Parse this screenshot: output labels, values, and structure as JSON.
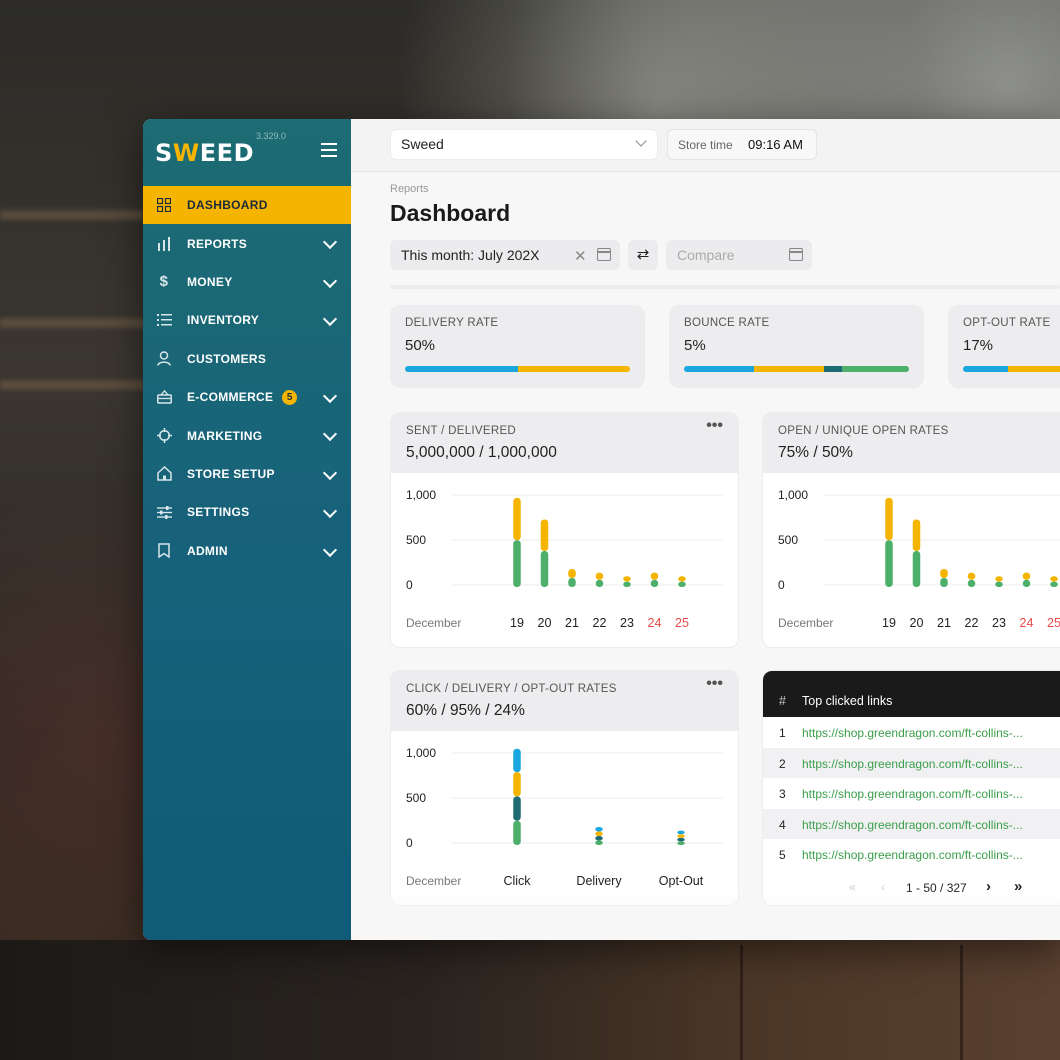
{
  "app": {
    "logo_prefix": "S",
    "logo_w": "W",
    "logo_suffix": "EED",
    "version": "3.329.0"
  },
  "sidebar": {
    "items": [
      {
        "label": "DASHBOARD",
        "icon": "grid-icon",
        "active": true
      },
      {
        "label": "REPORTS",
        "icon": "bar-chart-icon"
      },
      {
        "label": "MONEY",
        "icon": "dollar-icon"
      },
      {
        "label": "INVENTORY",
        "icon": "list-icon"
      },
      {
        "label": "CUSTOMERS",
        "icon": "user-icon"
      },
      {
        "label": "E-COMMERCE",
        "icon": "basket-icon",
        "badge": "5"
      },
      {
        "label": "MARKETING",
        "icon": "target-icon"
      },
      {
        "label": "STORE SETUP",
        "icon": "home-icon"
      },
      {
        "label": "SETTINGS",
        "icon": "sliders-icon"
      },
      {
        "label": "ADMIN",
        "icon": "bookmark-icon"
      }
    ]
  },
  "topbar": {
    "store": "Sweed",
    "store_time_label": "Store time",
    "store_time_value": "09:16 AM"
  },
  "page": {
    "breadcrumb": "Reports",
    "title": "Dashboard",
    "date_range": "This month: July 202X",
    "compare_placeholder": "Compare"
  },
  "rates": [
    {
      "label": "DELIVERY RATE",
      "value": "50%",
      "segments": [
        {
          "color": "#1aa7e0",
          "pct": 50
        },
        {
          "color": "#f5b400",
          "pct": 50
        }
      ]
    },
    {
      "label": "BOUNCE RATE",
      "value": "5%",
      "segments": [
        {
          "color": "#1aa7e0",
          "pct": 31
        },
        {
          "color": "#f5b400",
          "pct": 31
        },
        {
          "color": "#1d6c73",
          "pct": 8
        },
        {
          "color": "#4caf6a",
          "pct": 30
        }
      ]
    },
    {
      "label": "OPT-OUT RATE",
      "value": "17%",
      "segments": [
        {
          "color": "#1aa7e0",
          "pct": 20
        },
        {
          "color": "#f5b400",
          "pct": 80
        }
      ]
    }
  ],
  "colors": {
    "yellow": "#f5b400",
    "green": "#4caf6a",
    "teal": "#1d6c73",
    "blue": "#1aa7e0",
    "weekend": "#e84a4a"
  },
  "chart_data": [
    {
      "type": "bar",
      "title": "SENT / DELIVERED",
      "headline": "5,000,000 / 1,000,000",
      "xlabel": "December",
      "categories": [
        "19",
        "20",
        "21",
        "22",
        "23",
        "24",
        "25"
      ],
      "weekend": [
        "24",
        "25"
      ],
      "yticks": [
        "1,000",
        "500",
        "0"
      ],
      "ylim": [
        0,
        1000
      ],
      "series": [
        {
          "color": "#4caf6a",
          "values": [
            520,
            400,
            100,
            80,
            60,
            80,
            60
          ]
        },
        {
          "color": "#f5b400",
          "values": [
            470,
            350,
            100,
            80,
            60,
            80,
            60
          ]
        }
      ]
    },
    {
      "type": "bar",
      "title": "OPEN / UNIQUE OPEN RATES",
      "headline": "75% / 50%",
      "xlabel": "December",
      "categories": [
        "19",
        "20",
        "21",
        "22",
        "23",
        "24",
        "25"
      ],
      "weekend": [
        "24",
        "25"
      ],
      "yticks": [
        "1,000",
        "500",
        "0"
      ],
      "ylim": [
        0,
        1000
      ],
      "series": [
        {
          "color": "#4caf6a",
          "values": [
            520,
            400,
            100,
            80,
            60,
            80,
            60
          ]
        },
        {
          "color": "#f5b400",
          "values": [
            470,
            350,
            100,
            80,
            60,
            80,
            60
          ]
        }
      ]
    },
    {
      "type": "bar",
      "title": "CLICK / DELIVERY / OPT-OUT RATES",
      "headline": "60% / 95% / 24%",
      "xlabel": "December",
      "categories": [
        "Click",
        "Delivery",
        "Opt-Out"
      ],
      "weekend": [],
      "yticks": [
        "1,000",
        "500",
        "0"
      ],
      "ylim": [
        0,
        1000
      ],
      "series": [
        {
          "color": "#4caf6a",
          "values": [
            270,
            50,
            40
          ]
        },
        {
          "color": "#1d6c73",
          "values": [
            270,
            50,
            40
          ]
        },
        {
          "color": "#f5b400",
          "values": [
            270,
            50,
            40
          ]
        },
        {
          "color": "#1aa7e0",
          "values": [
            260,
            50,
            40
          ]
        }
      ]
    }
  ],
  "links": {
    "header_num": "#",
    "header_label": "Top clicked links",
    "rows": [
      {
        "n": "1",
        "url": "https://shop.greendragon.com/ft-collins-..."
      },
      {
        "n": "2",
        "url": "https://shop.greendragon.com/ft-collins-..."
      },
      {
        "n": "3",
        "url": "https://shop.greendragon.com/ft-collins-..."
      },
      {
        "n": "4",
        "url": "https://shop.greendragon.com/ft-collins-..."
      },
      {
        "n": "5",
        "url": "https://shop.greendragon.com/ft-collins-..."
      }
    ],
    "pager": "1 - 50 / 327"
  }
}
